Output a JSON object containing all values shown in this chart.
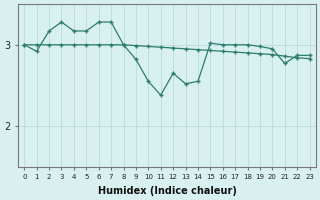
{
  "line1_x": [
    0,
    1,
    2,
    3,
    4,
    5,
    6,
    7,
    8,
    9,
    10,
    11,
    12,
    13,
    14,
    15,
    16,
    17,
    18,
    19,
    20,
    21,
    22,
    23
  ],
  "line1_y": [
    3.0,
    3.0,
    3.0,
    3.0,
    3.0,
    3.0,
    3.0,
    3.0,
    3.0,
    2.99,
    2.98,
    2.97,
    2.96,
    2.95,
    2.94,
    2.93,
    2.92,
    2.91,
    2.9,
    2.89,
    2.88,
    2.86,
    2.84,
    2.83
  ],
  "line2_x": [
    0,
    1,
    2,
    3,
    4,
    5,
    6,
    7,
    8,
    9,
    10,
    11,
    12,
    13,
    14,
    15,
    16,
    17,
    18,
    19,
    20,
    21,
    22,
    23
  ],
  "line2_y": [
    3.0,
    2.92,
    3.17,
    3.28,
    3.17,
    3.17,
    3.28,
    3.28,
    3.0,
    2.82,
    2.55,
    2.38,
    2.65,
    2.52,
    2.55,
    3.02,
    3.0,
    3.0,
    3.0,
    2.98,
    2.95,
    2.77,
    2.87,
    2.87
  ],
  "color": "#2d7d6e",
  "bg_color": "#d8f0f0",
  "grid_color": "#c0dede",
  "xlabel": "Humidex (Indice chaleur)",
  "ylim": [
    1.5,
    3.5
  ],
  "xlim": [
    -0.5,
    23.5
  ],
  "yticks": [
    2,
    3
  ],
  "xticks": [
    0,
    1,
    2,
    3,
    4,
    5,
    6,
    7,
    8,
    9,
    10,
    11,
    12,
    13,
    14,
    15,
    16,
    17,
    18,
    19,
    20,
    21,
    22,
    23
  ]
}
